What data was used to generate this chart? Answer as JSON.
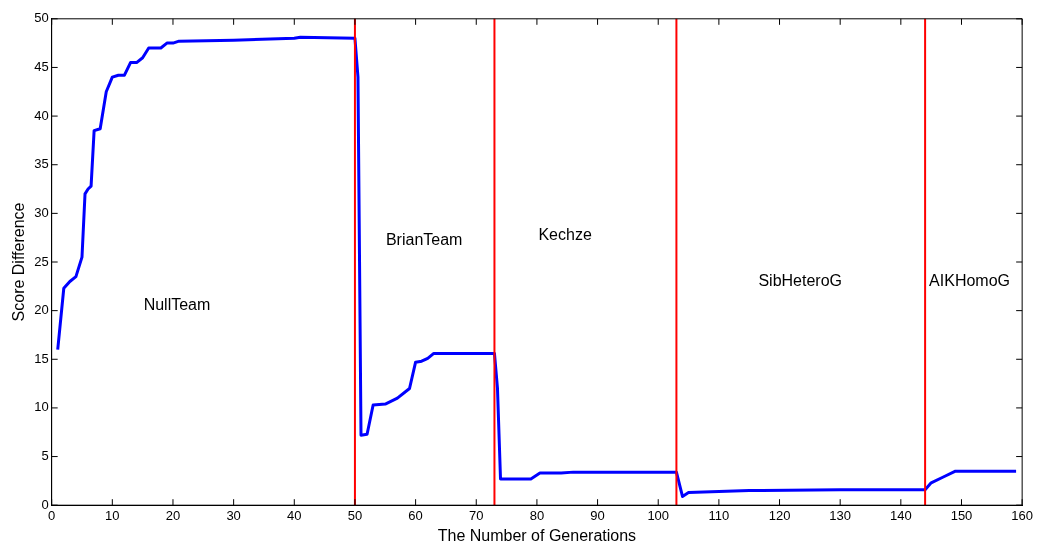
{
  "chart_data": {
    "type": "line",
    "xlabel": "The Number of Generations",
    "ylabel": "Score Difference",
    "xlim": [
      0,
      160
    ],
    "xticks": [
      0,
      10,
      20,
      30,
      40,
      50,
      60,
      70,
      80,
      90,
      100,
      110,
      120,
      130,
      140,
      150,
      160
    ],
    "ylim": [
      0,
      50
    ],
    "yticks": [
      0,
      5,
      10,
      15,
      20,
      25,
      30,
      35,
      40,
      45,
      50
    ],
    "grid": false,
    "legend": false,
    "marker": "none",
    "line_style": "solid",
    "series": [
      {
        "color": "#0000ff",
        "x": [
          1,
          2,
          3,
          4,
          5,
          5.5,
          6,
          6.5,
          7,
          8,
          9,
          10,
          11,
          12,
          13,
          14,
          15,
          16,
          18,
          19,
          20,
          21,
          30,
          40,
          41,
          50,
          50.5,
          51,
          52,
          53,
          55,
          57,
          59,
          60,
          61,
          62,
          63,
          73,
          73.5,
          74,
          79,
          80.5,
          84,
          86,
          103,
          104,
          105,
          110,
          115,
          130,
          144,
          145,
          147,
          149,
          159
        ],
        "values": [
          16,
          22.3,
          23,
          23.5,
          25.5,
          32,
          32.5,
          32.8,
          38.5,
          38.7,
          42.5,
          44,
          44.2,
          44.2,
          45.5,
          45.5,
          46,
          47,
          47,
          47.5,
          47.5,
          47.7,
          47.8,
          48,
          48.1,
          48,
          44,
          7.2,
          7.3,
          10.3,
          10.4,
          11,
          12,
          14.7,
          14.8,
          15.1,
          15.6,
          15.6,
          12,
          2.7,
          2.7,
          3.3,
          3.3,
          3.4,
          3.4,
          0.9,
          1.3,
          1.4,
          1.5,
          1.6,
          1.6,
          2.3,
          2.9,
          3.5,
          3.5
        ]
      }
    ],
    "ref_lines": [
      {
        "axis": "x",
        "value": 50,
        "color": "#ff0000"
      },
      {
        "axis": "x",
        "value": 73,
        "color": "#ff0000"
      },
      {
        "axis": "x",
        "value": 103,
        "color": "#ff0000"
      },
      {
        "axis": "x",
        "value": 144,
        "color": "#ff0000"
      }
    ],
    "annotations": [
      "NullTeam",
      "BrianTeam",
      "Kechze",
      "SibHeteroG",
      "AIKHomoG"
    ]
  }
}
